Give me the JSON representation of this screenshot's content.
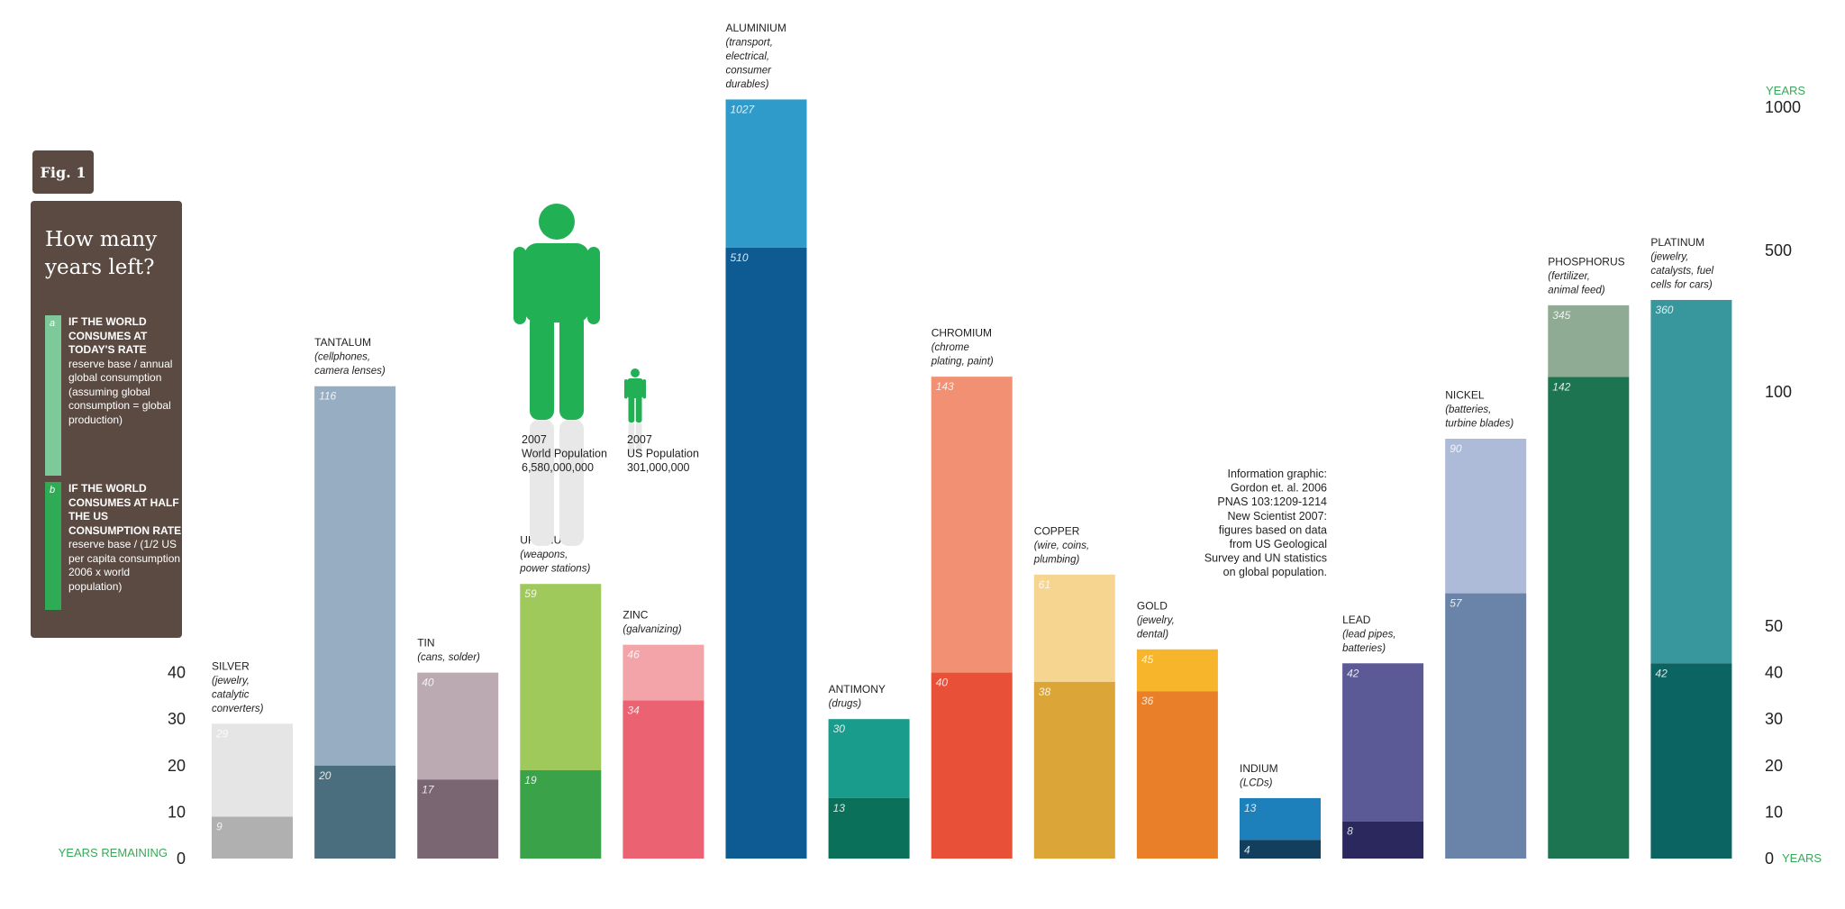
{
  "figure_label": "Fig. 1",
  "panel": {
    "title": "How many years left?",
    "options": [
      {
        "letter": "a",
        "heading": "IF THE WORLD CONSUMES AT TODAY'S RATE",
        "body": "reserve base / annual global consumption (assuming global consumption = global production)",
        "color": "#7ec99a"
      },
      {
        "letter": "b",
        "heading": "IF THE WORLD CONSUMES AT HALF THE US CONSUMPTION RATE",
        "body": "reserve base / (1/2 US per capita consumption 2006 x world population)",
        "color": "#2fab56"
      }
    ]
  },
  "population": {
    "world": {
      "year": "2007",
      "label": "World Population",
      "value": "6,580,000,000"
    },
    "us": {
      "year": "2007",
      "label": "US Population",
      "value": "301,000,000"
    },
    "icon_color": "#22b055"
  },
  "credit": [
    "Information graphic:",
    "Gordon et. al. 2006",
    "PNAS 103:1209-1214",
    "New Scientist 2007:",
    "figures based on data",
    "from US Geological",
    "Survey and UN statistics",
    "on global population."
  ],
  "chart_data": {
    "type": "bar",
    "title": "How many years left?",
    "left_axis": {
      "ticks": [
        "0",
        "10",
        "20",
        "30",
        "40"
      ],
      "label": "YEARS REMAINING"
    },
    "right_axis": {
      "ticks": [
        "0",
        "10",
        "20",
        "30",
        "40",
        "50",
        "100",
        "500",
        "1000"
      ],
      "top_label": "YEARS",
      "bottom_label": "YEARS",
      "scale": "broken: linear 0–50, compressed 50–1000"
    },
    "series": [
      {
        "name": "IF THE WORLD CONSUMES AT TODAY'S RATE"
      },
      {
        "name": "IF THE WORLD CONSUMES AT HALF THE US CONSUMPTION RATE"
      }
    ],
    "categories": [
      {
        "name": "SILVER",
        "use": [
          "(jewelry,",
          "catalytic",
          "converters)"
        ],
        "a": 29,
        "b": 9,
        "color_a": "#e5e5e5",
        "color_b": "#b0b0b0",
        "label_a": "29",
        "label_b": "9"
      },
      {
        "name": "TANTALUM",
        "use": [
          "(cellphones,",
          "camera lenses)"
        ],
        "a": 116,
        "b": 20,
        "color_a": "#97adc2",
        "color_b": "#4a6e7e",
        "label_a": "116",
        "label_b": "20"
      },
      {
        "name": "TIN",
        "use": [
          "(cans, solder)"
        ],
        "a": 40,
        "b": 17,
        "color_a": "#bbaab2",
        "color_b": "#7a6572",
        "label_a": "40",
        "label_b": "17"
      },
      {
        "name": "URANIUM",
        "use": [
          "(weapons,",
          "power stations)"
        ],
        "a": 59,
        "b": 19,
        "color_a": "#a0c95c",
        "color_b": "#3aa34a",
        "label_a": "59",
        "label_b": "19"
      },
      {
        "name": "ZINC",
        "use": [
          "(galvanizing)"
        ],
        "a": 46,
        "b": 34,
        "color_a": "#f2a4a8",
        "color_b": "#eb6373",
        "label_a": "46",
        "label_b": "34"
      },
      {
        "name": "ALUMINIUM",
        "use": [
          "(transport,",
          "electrical,",
          "consumer",
          "durables)"
        ],
        "a": 1027,
        "b": 510,
        "color_a": "#2f9bcb",
        "color_b": "#0e5b93",
        "label_a": "1027",
        "label_b": "510"
      },
      {
        "name": "ANTIMONY",
        "use": [
          "(drugs)"
        ],
        "a": 30,
        "b": 13,
        "color_a": "#199c8b",
        "color_b": "#0a705a",
        "label_a": "30",
        "label_b": "13"
      },
      {
        "name": "CHROMIUM",
        "use": [
          "(chrome",
          "plating, paint)"
        ],
        "a": 143,
        "b": 40,
        "color_a": "#f19072",
        "color_b": "#e85138",
        "label_a": "143",
        "label_b": "40"
      },
      {
        "name": "COPPER",
        "use": [
          "(wire, coins,",
          "plumbing)"
        ],
        "a": 61,
        "b": 38,
        "color_a": "#f6d591",
        "color_b": "#dba637",
        "label_a": "61",
        "label_b": "38"
      },
      {
        "name": "GOLD",
        "use": [
          "(jewelry,",
          "dental)"
        ],
        "a": 45,
        "b": 36,
        "color_a": "#f6b52b",
        "color_b": "#ea7f29",
        "label_a": "45",
        "label_b": "36"
      },
      {
        "name": "INDIUM",
        "use": [
          "(LCDs)"
        ],
        "a": 13,
        "b": 4,
        "color_a": "#1e80bb",
        "color_b": "#133f5e",
        "label_a": "13",
        "label_b": "4"
      },
      {
        "name": "LEAD",
        "use": [
          "(lead pipes,",
          "batteries)"
        ],
        "a": 42,
        "b": 8,
        "color_a": "#5c5997",
        "color_b": "#2b285d",
        "label_a": "42",
        "label_b": "8"
      },
      {
        "name": "NICKEL",
        "use": [
          "(batteries,",
          "turbine blades)"
        ],
        "a": 90,
        "b": 57,
        "color_a": "#adbbd9",
        "color_b": "#6983a9",
        "label_a": "90",
        "label_b": "57"
      },
      {
        "name": "PHOSPHORUS",
        "use": [
          "(fertilizer,",
          "animal feed)"
        ],
        "a": 345,
        "b": 142,
        "color_a": "#8fab94",
        "color_b": "#1c7450",
        "label_a": "345",
        "label_b": "142"
      },
      {
        "name": "PLATINUM",
        "use": [
          "(jewelry,",
          "catalysts, fuel",
          "cells for cars)"
        ],
        "a": 360,
        "b": 42,
        "color_a": "#38979c",
        "color_b": "#0c6462",
        "label_a": "360",
        "label_b": "42"
      }
    ],
    "colors": {
      "axis_label_green": "#3aa85a",
      "axis_text": "#222222"
    }
  }
}
